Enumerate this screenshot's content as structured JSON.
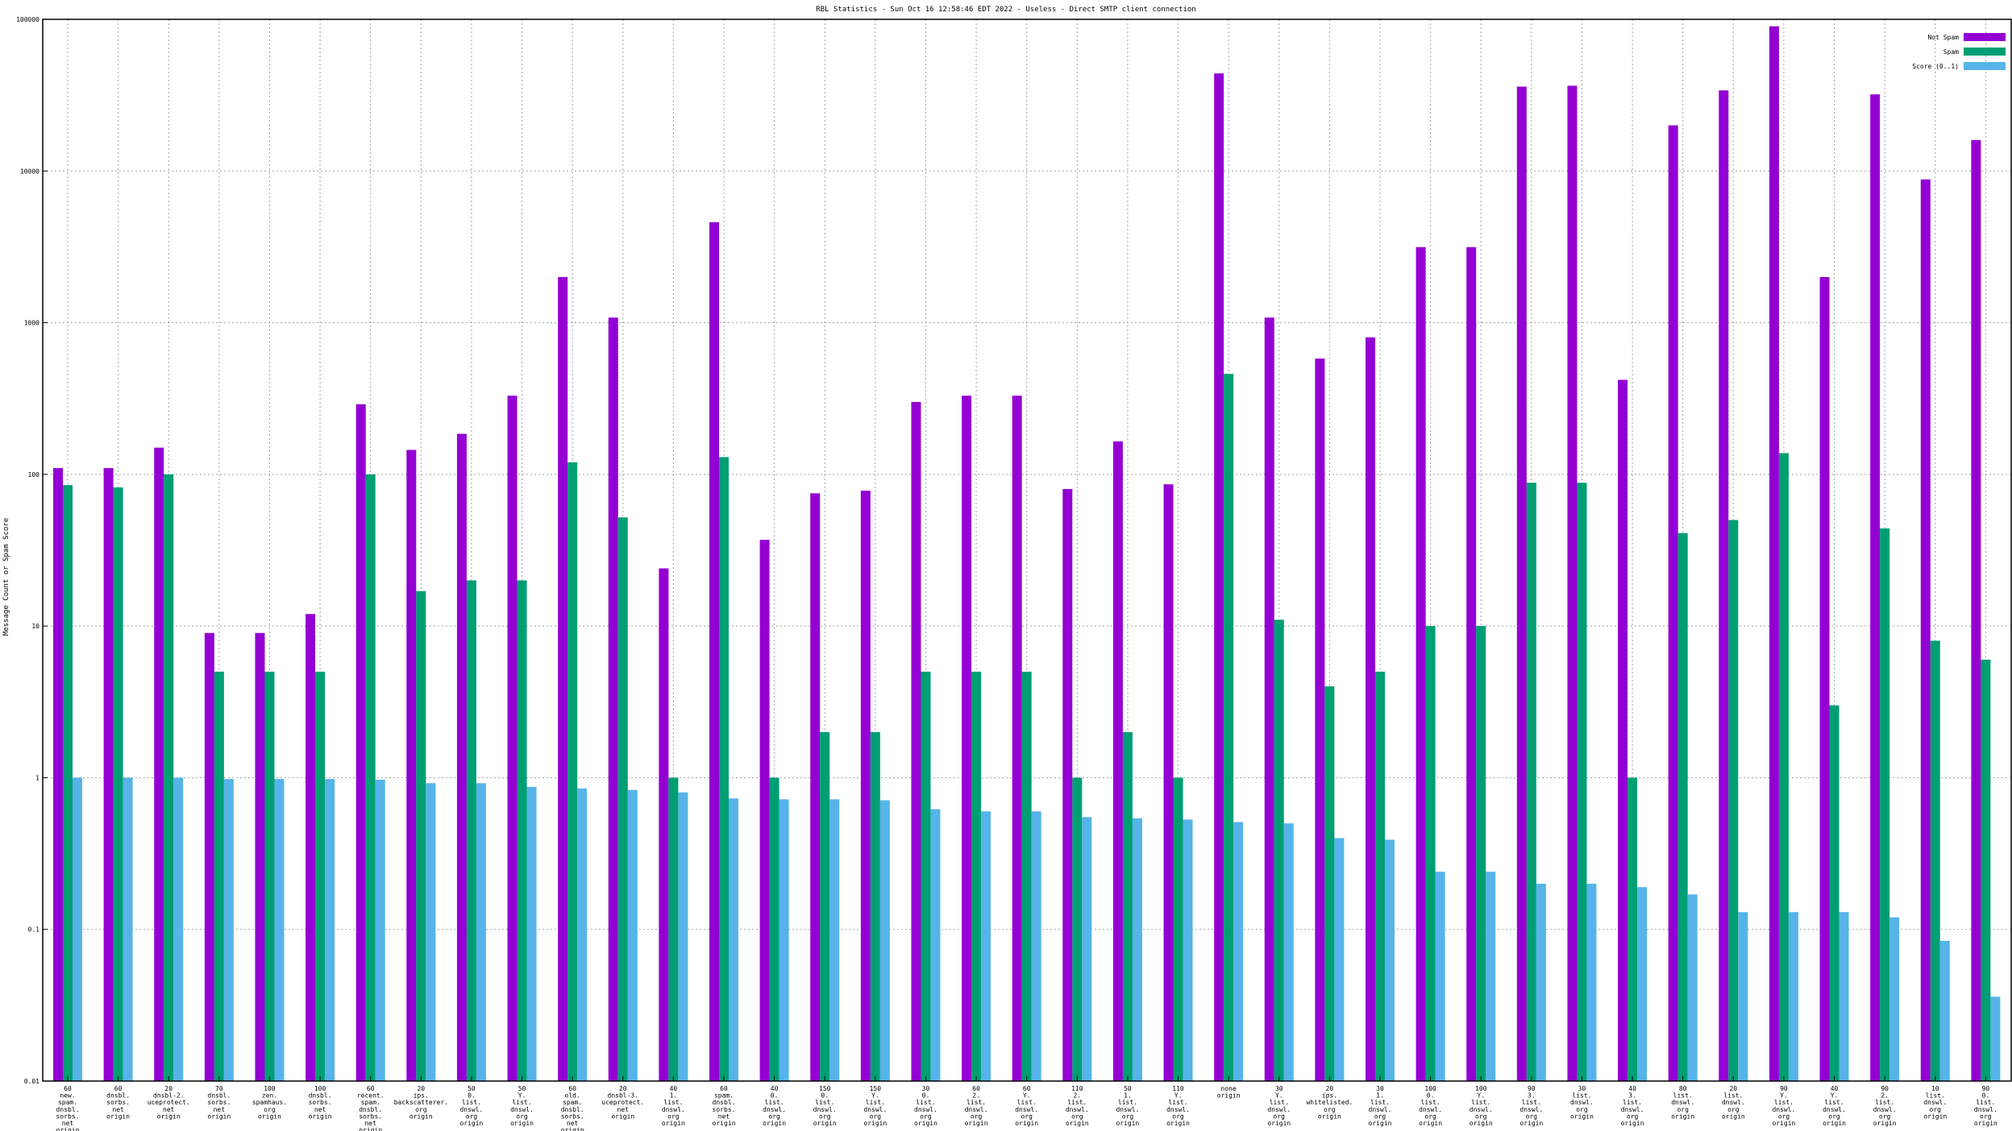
{
  "chart_data": {
    "type": "bar",
    "title": "RBL Statistics - Sun Oct 16 12:58:46 EDT 2022 - Useless - Direct SMTP client connection",
    "xlabel": "",
    "ylabel": "Message Count or Spam Score",
    "yscale": "log",
    "ylim": [
      0.01,
      100000
    ],
    "yticks": [
      "0.01",
      "0.1",
      "1",
      "10",
      "100",
      "1000",
      "10000",
      "100000"
    ],
    "grid": true,
    "legend_position": "top-right",
    "categories": [
      [
        "60",
        "new.",
        "spam.",
        "dnsbl.",
        "sorbs.",
        "net",
        "origin"
      ],
      [
        "60",
        "dnsbl.",
        "sorbs.",
        "net",
        "origin"
      ],
      [
        "20",
        "dnsbl-2.",
        "uceprotect.",
        "net",
        "origin"
      ],
      [
        "70",
        "dnsbl.",
        "sorbs.",
        "net",
        "origin"
      ],
      [
        "100",
        "zen.",
        "spamhaus.",
        "org",
        "origin"
      ],
      [
        "100",
        "dnsbl.",
        "sorbs.",
        "net",
        "origin"
      ],
      [
        "60",
        "recent.",
        "spam.",
        "dnsbl.",
        "sorbs.",
        "net",
        "origin"
      ],
      [
        "20",
        "ips.",
        "backscatterer.",
        "org",
        "origin"
      ],
      [
        "50",
        "0.",
        "list.",
        "dnswl.",
        "org",
        "origin"
      ],
      [
        "50",
        "Y.",
        "list.",
        "dnswl.",
        "org",
        "origin"
      ],
      [
        "60",
        "old.",
        "spam.",
        "dnsbl.",
        "sorbs.",
        "net",
        "origin"
      ],
      [
        "20",
        "dnsbl-3.",
        "uceprotect.",
        "net",
        "origin"
      ],
      [
        "40",
        "1.",
        "list.",
        "dnswl.",
        "org",
        "origin"
      ],
      [
        "60",
        "spam.",
        "dnsbl.",
        "sorbs.",
        "net",
        "origin"
      ],
      [
        "40",
        "0.",
        "list.",
        "dnswl.",
        "org",
        "origin"
      ],
      [
        "150",
        "0.",
        "list.",
        "dnswl.",
        "org",
        "origin"
      ],
      [
        "150",
        "Y.",
        "list.",
        "dnswl.",
        "org",
        "origin"
      ],
      [
        "30",
        "0.",
        "list.",
        "dnswl.",
        "org",
        "origin"
      ],
      [
        "60",
        "2.",
        "list.",
        "dnswl.",
        "org",
        "origin"
      ],
      [
        "60",
        "Y.",
        "list.",
        "dnswl.",
        "org",
        "origin"
      ],
      [
        "110",
        "2.",
        "list.",
        "dnswl.",
        "org",
        "origin"
      ],
      [
        "50",
        "1.",
        "list.",
        "dnswl.",
        "org",
        "origin"
      ],
      [
        "110",
        "Y.",
        "list.",
        "dnswl.",
        "org",
        "origin"
      ],
      [
        "none",
        "origin"
      ],
      [
        "30",
        "Y.",
        "list.",
        "dnswl.",
        "org",
        "origin"
      ],
      [
        "20",
        "ips.",
        "whitelisted.",
        "org",
        "origin"
      ],
      [
        "30",
        "1.",
        "list.",
        "dnswl.",
        "org",
        "origin"
      ],
      [
        "100",
        "0.",
        "list.",
        "dnswl.",
        "org",
        "origin"
      ],
      [
        "100",
        "Y.",
        "list.",
        "dnswl.",
        "org",
        "origin"
      ],
      [
        "90",
        "3.",
        "list.",
        "dnswl.",
        "org",
        "origin"
      ],
      [
        "30",
        "list.",
        "dnswl.",
        "org",
        "origin"
      ],
      [
        "40",
        "3.",
        "list.",
        "dnswl.",
        "org",
        "origin"
      ],
      [
        "80",
        "list.",
        "dnswl.",
        "org",
        "origin"
      ],
      [
        "20",
        "list.",
        "dnswl.",
        "org",
        "origin"
      ],
      [
        "90",
        "Y.",
        "list.",
        "dnswl.",
        "org",
        "origin"
      ],
      [
        "40",
        "Y.",
        "list.",
        "dnswl.",
        "org",
        "origin"
      ],
      [
        "90",
        "2.",
        "list.",
        "dnswl.",
        "org",
        "origin"
      ],
      [
        "10",
        "list.",
        "dnswl.",
        "org",
        "origin"
      ],
      [
        "90",
        "0.",
        "list.",
        "dnswl.",
        "org",
        "origin"
      ]
    ],
    "series": [
      {
        "name": "Not Spam",
        "color": "#9400d3",
        "values": [
          110,
          110,
          150,
          9,
          9,
          12,
          290,
          145,
          185,
          330,
          2000,
          1080,
          24,
          4600,
          37,
          75,
          78,
          300,
          330,
          330,
          80,
          165,
          86,
          44000,
          1080,
          580,
          800,
          3150,
          3150,
          36000,
          36500,
          420,
          20000,
          34000,
          90000,
          2000,
          32000,
          8800,
          16000
        ]
      },
      {
        "name": "Spam",
        "color": "#009e73",
        "values": [
          85,
          82,
          100,
          5,
          5,
          5,
          100,
          17,
          20,
          20,
          120,
          52,
          1,
          130,
          1,
          2,
          2,
          5,
          5,
          5,
          1,
          2,
          1,
          460,
          11,
          4,
          5,
          10,
          10,
          88,
          88,
          1,
          41,
          50,
          138,
          3,
          44,
          8,
          6
        ]
      },
      {
        "name": "Score (0..1)",
        "color": "#56b4e9",
        "values": [
          1.0,
          1.0,
          1.0,
          0.98,
          0.98,
          0.98,
          0.97,
          0.92,
          0.92,
          0.87,
          0.85,
          0.83,
          0.8,
          0.73,
          0.72,
          0.72,
          0.71,
          0.62,
          0.6,
          0.6,
          0.55,
          0.54,
          0.53,
          0.51,
          0.5,
          0.4,
          0.39,
          0.24,
          0.24,
          0.2,
          0.2,
          0.19,
          0.17,
          0.13,
          0.13,
          0.13,
          0.12,
          0.084,
          0.036
        ]
      }
    ]
  }
}
